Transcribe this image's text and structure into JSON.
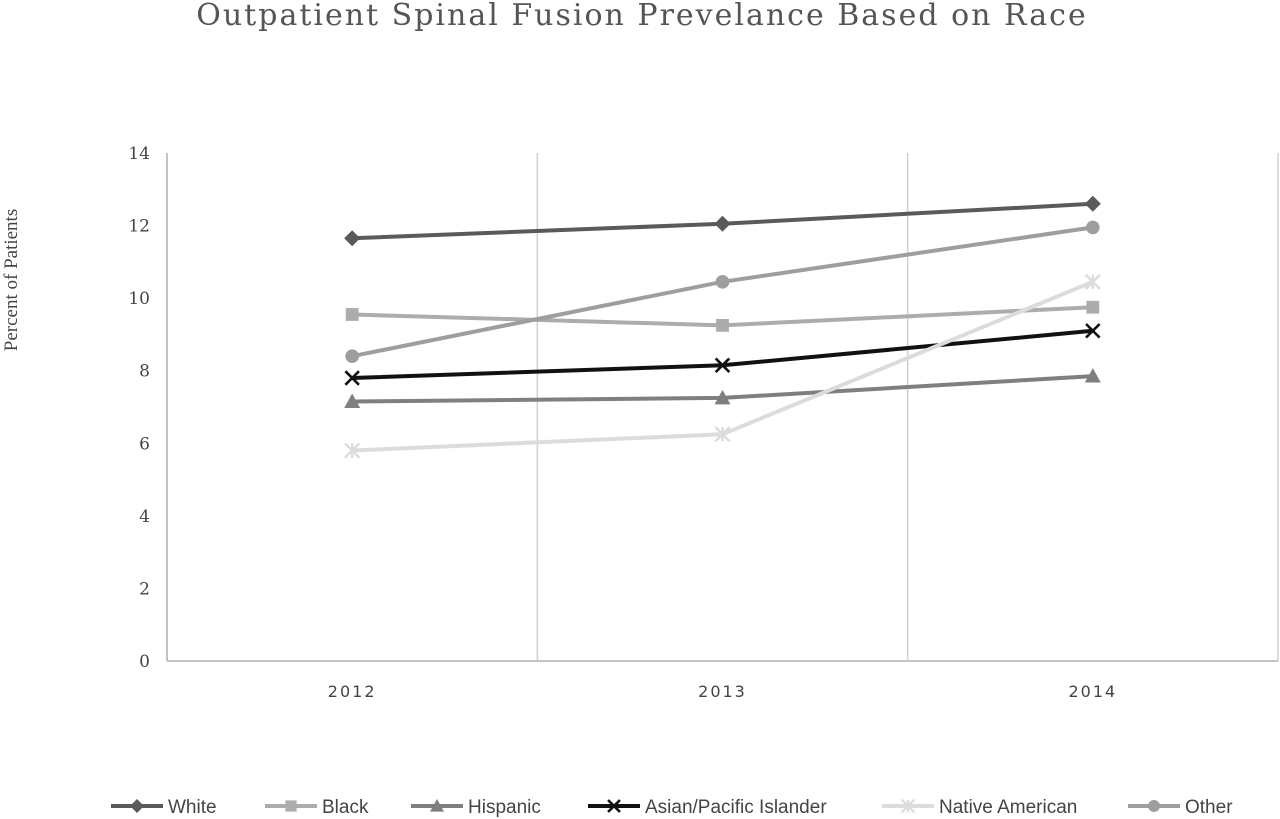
{
  "chart_data": {
    "type": "line",
    "title": "Outpatient Spinal Fusion Prevelance Based on Race",
    "xlabel": "",
    "ylabel": "Percent of Patients",
    "categories": [
      "2012",
      "2013",
      "2014"
    ],
    "ylim": [
      0,
      14
    ],
    "yticks": [
      0,
      2,
      4,
      6,
      8,
      10,
      12,
      14
    ],
    "grid": "vertical",
    "legend_position": "bottom",
    "series": [
      {
        "name": "White",
        "values": [
          11.65,
          12.05,
          12.6
        ],
        "color": "#5a5a5a",
        "marker": "diamond"
      },
      {
        "name": "Black",
        "values": [
          9.55,
          9.25,
          9.75
        ],
        "color": "#acacac",
        "marker": "square"
      },
      {
        "name": "Hispanic",
        "values": [
          7.15,
          7.25,
          7.85
        ],
        "color": "#7f7f7f",
        "marker": "triangle"
      },
      {
        "name": "Asian/Pacific Islander",
        "values": [
          7.8,
          8.15,
          9.1
        ],
        "color": "#111111",
        "marker": "x"
      },
      {
        "name": "Native American",
        "values": [
          5.8,
          6.25,
          10.45
        ],
        "color": "#dcdcdc",
        "marker": "star"
      },
      {
        "name": "Other",
        "values": [
          8.4,
          10.45,
          11.95
        ],
        "color": "#9e9e9e",
        "marker": "circle"
      }
    ]
  }
}
